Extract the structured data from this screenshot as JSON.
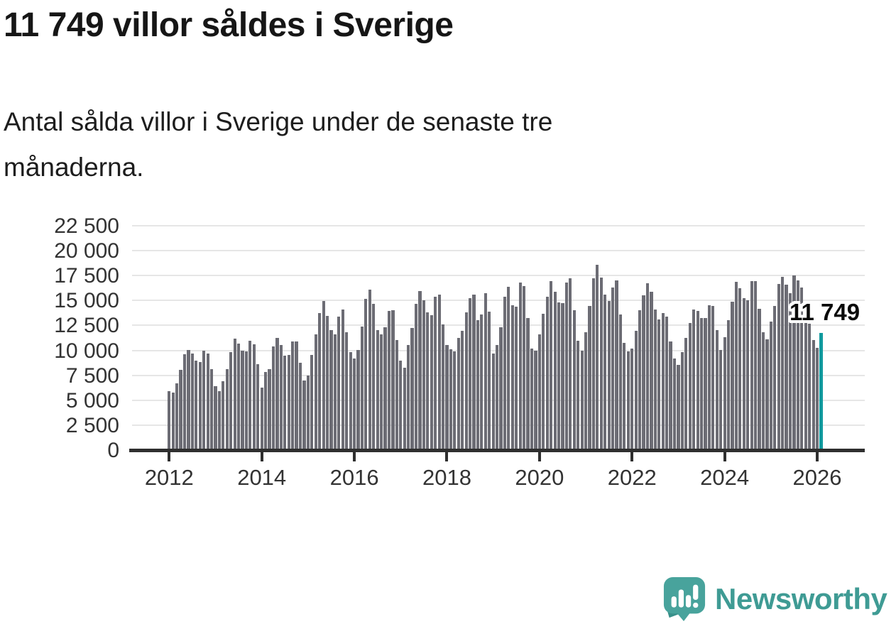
{
  "title": "11 749 villor såldes i Sverige",
  "subtitle": "Antal sålda villor i Sverige under de senaste tre månaderna.",
  "annotation": {
    "label": "11 749"
  },
  "footer": {
    "brand": "Newsworthy",
    "logo_icon": "newsworthy-speech-bubble-bar-chart-icon"
  },
  "colors": {
    "bar": "#6c6c74",
    "highlight": "#109a9e",
    "grid": "#e6e6e6",
    "axis": "#2f2f2f",
    "tick_label": "#333333",
    "title_text": "#161616",
    "brand_teal": "#3f9b94"
  },
  "chart_data": {
    "type": "bar",
    "title": "11 749 villor såldes i Sverige",
    "subtitle": "Antal sålda villor i Sverige under de senaste tre månaderna.",
    "x_unit": "month",
    "x_start": "2012-01",
    "x_end": "2026-02",
    "x_tick_labels": [
      "2012",
      "2014",
      "2016",
      "2018",
      "2020",
      "2022",
      "2024",
      "2026"
    ],
    "y_ticks": [
      0,
      2500,
      5000,
      7500,
      10000,
      12500,
      15000,
      17500,
      20000,
      22500
    ],
    "y_tick_labels": [
      "0",
      "2 500",
      "5 000",
      "7 500",
      "10 000",
      "12 500",
      "15 000",
      "17 500",
      "20 000",
      "22 500"
    ],
    "ylim": [
      0,
      22500
    ],
    "grid": "horizontal",
    "legend": "none",
    "highlight_last": true,
    "last_value": 11749,
    "last_value_label": "11 749",
    "series": [
      {
        "name": "Antal sålda villor",
        "values": [
          5900,
          5750,
          6700,
          8050,
          9600,
          10050,
          9700,
          8950,
          8800,
          9950,
          9650,
          8150,
          6400,
          5900,
          6900,
          8150,
          9800,
          11200,
          10650,
          10000,
          9900,
          10950,
          10600,
          8600,
          6250,
          7800,
          8150,
          10400,
          11230,
          10560,
          9500,
          9570,
          10870,
          10920,
          8780,
          7000,
          7480,
          9570,
          11590,
          13770,
          14980,
          13480,
          12060,
          11590,
          13370,
          14080,
          11820,
          9800,
          9210,
          10040,
          12420,
          15150,
          16100,
          14650,
          12050,
          11600,
          12300,
          13960,
          14010,
          11040,
          8970,
          8260,
          10560,
          12250,
          14670,
          15980,
          15000,
          13790,
          13530,
          15380,
          15620,
          12580,
          10520,
          10110,
          9920,
          11230,
          11940,
          13840,
          15270,
          15570,
          13060,
          13600,
          15740,
          13900,
          9690,
          10520,
          12350,
          15380,
          16380,
          14550,
          14360,
          16810,
          16430,
          13250,
          10210,
          9950,
          11590,
          13650,
          15380,
          16970,
          15860,
          14790,
          14720,
          16810,
          17260,
          14010,
          10990,
          9970,
          11820,
          14480,
          17210,
          18590,
          17330,
          15620,
          14960,
          16330,
          17050,
          13600,
          10750,
          9920,
          10210,
          11940,
          14030,
          15500,
          16760,
          15860,
          14080,
          13130,
          13720,
          13370,
          10870,
          9210,
          8550,
          9800,
          11230,
          12770,
          14080,
          13960,
          13250,
          13250,
          14550,
          14480,
          12060,
          10040,
          11300,
          13010,
          14910,
          16860,
          16210,
          15270,
          15030,
          16970,
          16970,
          14200,
          11820,
          11110,
          12890,
          14430,
          16690,
          17350,
          16570,
          15740,
          17520,
          17050,
          16300,
          14800,
          12700,
          11050,
          10240,
          11749
        ]
      }
    ]
  }
}
